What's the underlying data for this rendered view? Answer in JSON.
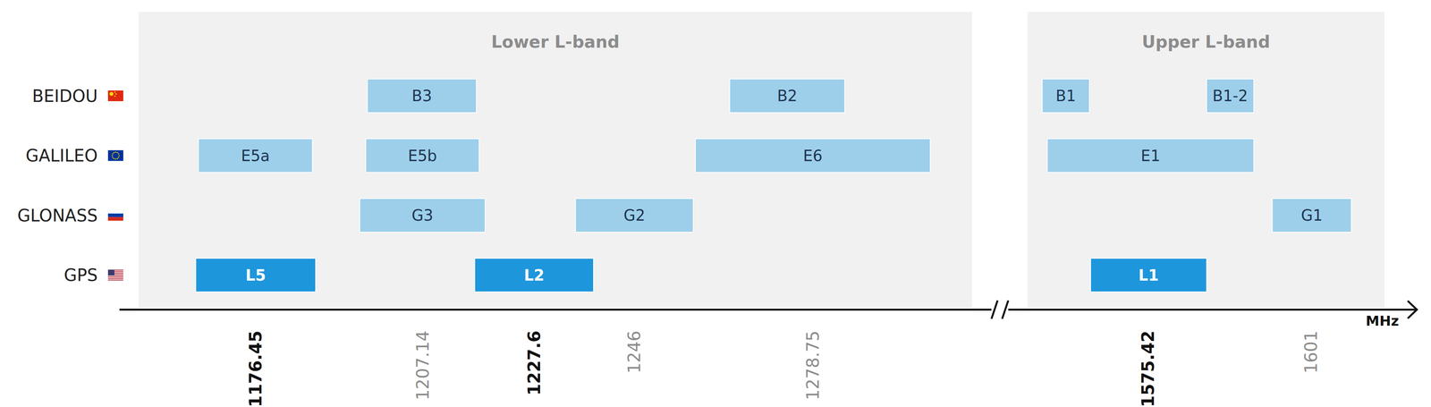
{
  "chart_data": {
    "type": "range_bar",
    "orientation": "horizontal",
    "xlabel": "MHz",
    "segments": [
      {
        "title": "Lower L-band",
        "xlim": [
          1155,
          1308
        ],
        "xticks": [
          1176.45,
          1207.14,
          1227.6,
          1246,
          1278.75
        ]
      },
      {
        "title": "Upper L-band",
        "xlim": [
          1556.5,
          1612.5
        ],
        "xticks": [
          1575.42,
          1601
        ]
      }
    ],
    "rows": [
      {
        "name": "BEIDOU",
        "color": "#9dcfeb",
        "bands": [
          {
            "label": "B3",
            "start": 1197,
            "end": 1217
          },
          {
            "label": "B2",
            "start": 1263.5,
            "end": 1284.6
          },
          {
            "label": "B1",
            "start": 1558.8,
            "end": 1566.2
          },
          {
            "label": "B1-2",
            "start": 1584.6,
            "end": 1592
          }
        ]
      },
      {
        "name": "GALILEO",
        "color": "#9dcfeb",
        "bands": [
          {
            "label": "E5a",
            "start": 1166,
            "end": 1186.9
          },
          {
            "label": "E5b",
            "start": 1196.7,
            "end": 1217.5
          },
          {
            "label": "E6",
            "start": 1257.2,
            "end": 1300.3
          },
          {
            "label": "E1",
            "start": 1559.6,
            "end": 1592
          }
        ]
      },
      {
        "name": "GLONASS",
        "color": "#9dcfeb",
        "bands": [
          {
            "label": "G3",
            "start": 1195.6,
            "end": 1218.6
          },
          {
            "label": "G2",
            "start": 1235.2,
            "end": 1256.8
          },
          {
            "label": "G1",
            "start": 1594.9,
            "end": 1607.3
          }
        ]
      },
      {
        "name": "GPS",
        "color": "#1e96dc",
        "bands": [
          {
            "label": "L5",
            "start": 1165.5,
            "end": 1187.5
          },
          {
            "label": "L2",
            "start": 1216.7,
            "end": 1238.5
          },
          {
            "label": "L1",
            "start": 1566.4,
            "end": 1584.6
          }
        ]
      }
    ]
  }
}
